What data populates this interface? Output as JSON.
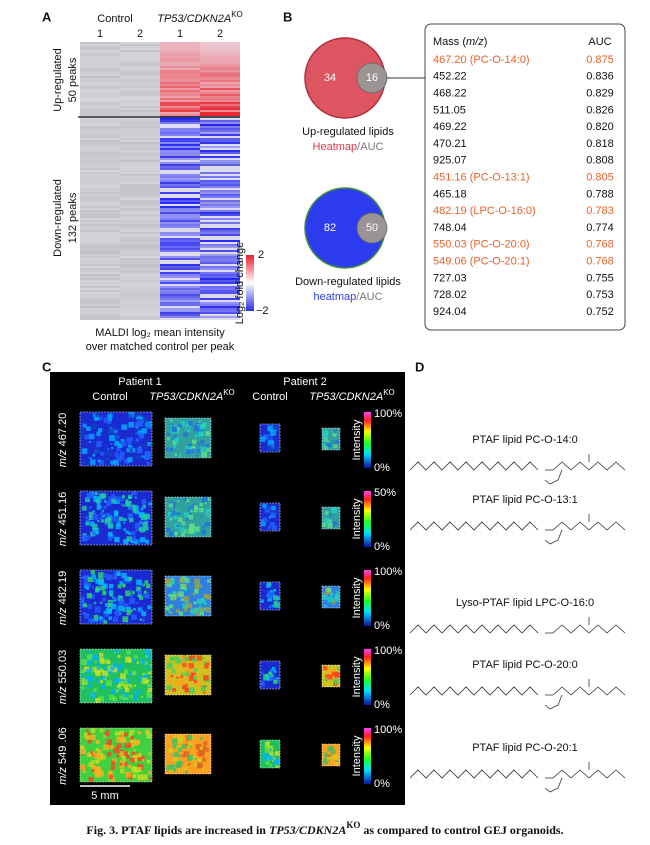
{
  "panel_a": {
    "label": "A",
    "control_label": "Control",
    "ko_label": {
      "gene": "TP53/CDKN2A",
      "sup": "KO"
    },
    "columns": [
      "1",
      "2",
      "1",
      "2"
    ],
    "up_label": [
      "Up-regulated",
      "50 peaks"
    ],
    "down_label": [
      "Down-regulated",
      "132 peaks"
    ],
    "colorbar": {
      "max": "2",
      "min": "−2",
      "title": "Log₂ fold change"
    },
    "footer": [
      "MALDI log₂ mean intensity",
      "over matched control per peak"
    ]
  },
  "panel_b": {
    "label": "B",
    "up": {
      "only": "34",
      "overlap": "16",
      "title": "Up-regulated lipids",
      "method_a": "Heatmap",
      "method_b": "/AUC"
    },
    "down": {
      "only": "82",
      "overlap": "50",
      "title": "Down-regulated lipids",
      "method_a": "heatmap",
      "method_b": "/AUC"
    },
    "table": {
      "header": {
        "mass": [
          "Mass (",
          "m/z",
          ")"
        ],
        "auc": "AUC"
      },
      "rows": [
        {
          "mass": "467.20 (PC-O-14:0)",
          "auc": "0.875",
          "highlight": true
        },
        {
          "mass": "452.22",
          "auc": "0.836",
          "highlight": false
        },
        {
          "mass": "468.22",
          "auc": "0.829",
          "highlight": false
        },
        {
          "mass": "511.05",
          "auc": "0.826",
          "highlight": false
        },
        {
          "mass": "469.22",
          "auc": "0.820",
          "highlight": false
        },
        {
          "mass": "470.21",
          "auc": "0.818",
          "highlight": false
        },
        {
          "mass": "925.07",
          "auc": "0.808",
          "highlight": false
        },
        {
          "mass": "451.16 (PC-O-13:1)",
          "auc": "0.805",
          "highlight": true
        },
        {
          "mass": "465.18",
          "auc": "0.788",
          "highlight": false
        },
        {
          "mass": "482.19 (LPC-O-16:0)",
          "auc": "0.783",
          "highlight": true
        },
        {
          "mass": "748.04",
          "auc": "0.774",
          "highlight": false
        },
        {
          "mass": "550.03 (PC-O-20:0)",
          "auc": "0.768",
          "highlight": true
        },
        {
          "mass": "549.06 (PC-O-20:1)",
          "auc": "0.768",
          "highlight": true
        },
        {
          "mass": "727.03",
          "auc": "0.755",
          "highlight": false
        },
        {
          "mass": "728.02",
          "auc": "0.753",
          "highlight": false
        },
        {
          "mass": "924.04",
          "auc": "0.752",
          "highlight": false
        }
      ]
    }
  },
  "panel_c": {
    "label": "C",
    "patients": [
      "Patient 1",
      "Patient 2"
    ],
    "conditions": [
      {
        "control": "Control",
        "gene": "TP53/CDKN2A",
        "sup": "KO"
      },
      {
        "control": "Control",
        "gene": "TP53/CDKN2A",
        "sup": "KO"
      }
    ],
    "rows": [
      {
        "prefix": "m/z",
        "mass": " 467.20",
        "scale_max": "100%",
        "scale_min": "0%",
        "scale_title": "Intensity"
      },
      {
        "prefix": "m/z",
        "mass": " 451.16",
        "scale_max": "50%",
        "scale_min": "0%",
        "scale_title": "Intensity"
      },
      {
        "prefix": "m/z",
        "mass": " 482.19",
        "scale_max": "100%",
        "scale_min": "0%",
        "scale_title": "Intensity"
      },
      {
        "prefix": "m/z",
        "mass": " 550.03",
        "scale_max": "100%",
        "scale_min": "0%",
        "scale_title": "Intensity"
      },
      {
        "prefix": "m/z",
        "mass": " 549 .06",
        "scale_max": "100%",
        "scale_min": "0%",
        "scale_title": "Intensity"
      }
    ],
    "scale_bar": "5 mm"
  },
  "panel_d": {
    "label": "D",
    "structures": [
      "PTAF lipid PC-O-14:0",
      "PTAF lipid PC-O-13:1",
      "Lyso-PTAF lipid LPC-O-16:0",
      "PTAF lipid PC-O-20:0",
      "PTAF lipid PC-O-20:1"
    ]
  },
  "caption": {
    "prefix": "Fig. 3. PTAF lipids are increased in ",
    "gene": "TP53/CDKN2A",
    "sup": "KO",
    "suffix": " as compared to control GEJ organoids."
  }
}
